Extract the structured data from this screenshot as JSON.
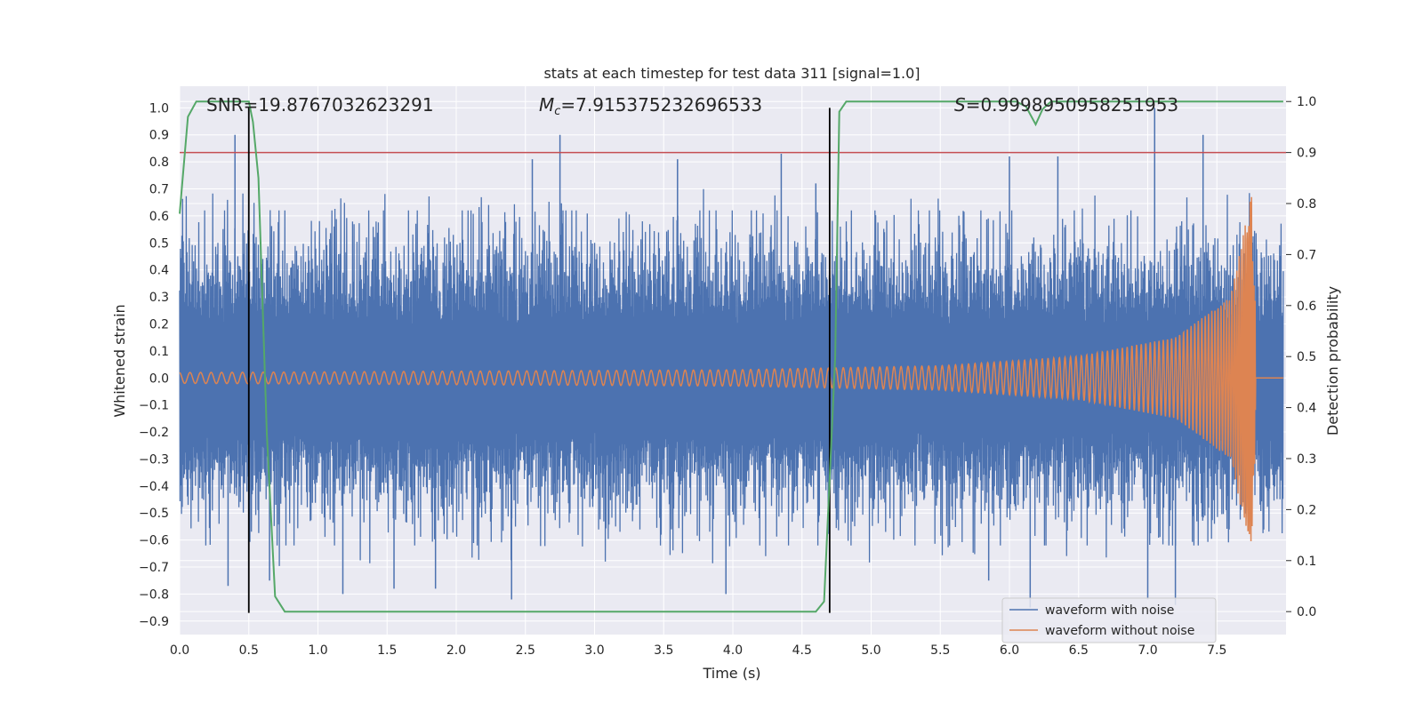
{
  "chart_data": {
    "type": "line",
    "title": "stats at each timestep for test data 311 [signal=1.0]",
    "xlabel": "Time (s)",
    "ylabel": "Whitened strain",
    "y2label": "Detection probability",
    "xlim": [
      0.0,
      8.0
    ],
    "ylim": [
      -0.95,
      1.08
    ],
    "y2lim": [
      -0.045,
      1.03
    ],
    "x_ticks": [
      "0.0",
      "0.5",
      "1.0",
      "1.5",
      "2.0",
      "2.5",
      "3.0",
      "3.5",
      "4.0",
      "4.5",
      "5.0",
      "5.5",
      "6.0",
      "6.5",
      "7.0",
      "7.5"
    ],
    "y_ticks": [
      "1.0",
      "0.9",
      "0.8",
      "0.7",
      "0.6",
      "0.5",
      "0.4",
      "0.3",
      "0.2",
      "0.1",
      "0.0",
      "−0.1",
      "−0.2",
      "−0.3",
      "−0.4",
      "−0.5",
      "−0.6",
      "−0.7",
      "−0.8",
      "−0.9"
    ],
    "y2_ticks": [
      "1.0",
      "0.9",
      "0.8",
      "0.7",
      "0.6",
      "0.5",
      "0.4",
      "0.3",
      "0.2",
      "0.1",
      "0.0"
    ],
    "annotations": {
      "snr": "SNR=19.8767032623291",
      "mc_symbol": "M",
      "mc_sub": "c",
      "mc_value": "=7.915375232696533",
      "s_symbol": "S",
      "s_value": "=0.9998950958251953"
    },
    "threshold": {
      "y2": 0.9,
      "color": "#c44e52"
    },
    "vlines": [
      {
        "x": 0.5,
        "y_range": [
          -0.87,
          1.0
        ]
      },
      {
        "x": 4.7,
        "y_range": [
          -0.87,
          1.0
        ]
      }
    ],
    "series": [
      {
        "name": "waveform with noise",
        "color": "#4c72b0",
        "axis": "left",
        "envelope_typical": 0.42,
        "peaks": [
          [
            0.4,
            0.9
          ],
          [
            0.35,
            -0.77
          ],
          [
            0.65,
            -0.75
          ],
          [
            1.18,
            -0.8
          ],
          [
            1.55,
            -0.78
          ],
          [
            1.85,
            -0.78
          ],
          [
            2.4,
            -0.82
          ],
          [
            2.55,
            0.81
          ],
          [
            2.75,
            0.9
          ],
          [
            3.6,
            0.81
          ],
          [
            4.35,
            0.83
          ],
          [
            4.6,
            0.72
          ],
          [
            6.0,
            0.82
          ],
          [
            6.35,
            0.82
          ],
          [
            7.05,
            1.0
          ],
          [
            7.4,
            0.9
          ],
          [
            7.0,
            -0.82
          ],
          [
            7.2,
            -0.84
          ],
          [
            6.15,
            -0.85
          ],
          [
            5.85,
            -0.75
          ],
          [
            3.95,
            -0.8
          ]
        ]
      },
      {
        "name": "waveform without noise",
        "color": "#dd8452",
        "axis": "left",
        "amplitude": [
          [
            0.0,
            0.02
          ],
          [
            2.0,
            0.025
          ],
          [
            4.0,
            0.03
          ],
          [
            5.5,
            0.045
          ],
          [
            6.5,
            0.08
          ],
          [
            7.2,
            0.15
          ],
          [
            7.6,
            0.3
          ],
          [
            7.75,
            0.68
          ],
          [
            7.8,
            0.0
          ],
          [
            8.0,
            0.0
          ]
        ]
      },
      {
        "name": "detection probability",
        "color": "#55a868",
        "axis": "right",
        "points": [
          [
            0.0,
            0.78
          ],
          [
            0.06,
            0.97
          ],
          [
            0.12,
            1.0
          ],
          [
            0.5,
            1.0
          ],
          [
            0.53,
            0.96
          ],
          [
            0.57,
            0.85
          ],
          [
            0.63,
            0.35
          ],
          [
            0.69,
            0.03
          ],
          [
            0.76,
            0.0
          ],
          [
            4.6,
            0.0
          ],
          [
            4.66,
            0.02
          ],
          [
            4.74,
            0.5
          ],
          [
            4.77,
            0.98
          ],
          [
            4.82,
            1.0
          ],
          [
            6.05,
            1.0
          ],
          [
            6.12,
            0.99
          ],
          [
            6.19,
            0.955
          ],
          [
            6.24,
            0.985
          ],
          [
            6.3,
            1.0
          ],
          [
            7.98,
            1.0
          ]
        ]
      }
    ],
    "legend": {
      "placement": "lower-right",
      "entries": [
        "waveform with noise",
        "waveform without noise"
      ]
    }
  }
}
